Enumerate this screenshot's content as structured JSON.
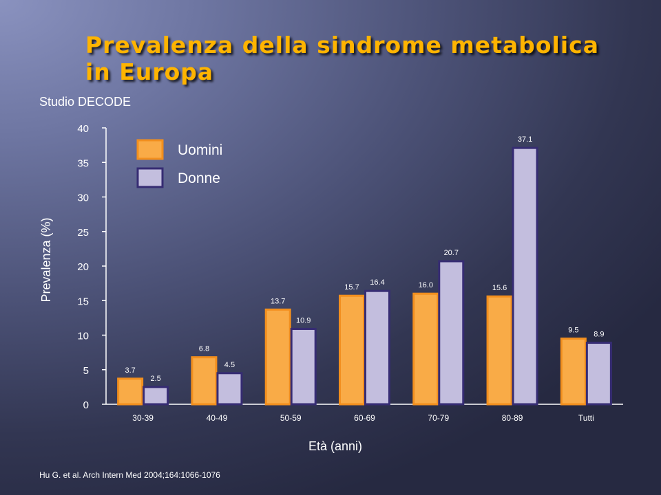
{
  "slide": {
    "title_line1": "Prevalenza della sindrome metabolica",
    "title_line2": "in Europa",
    "subtitle": "Studio DECODE",
    "citation": "Hu G. et al. Arch Intern Med 2004;164:1066-1076"
  },
  "chart_data": {
    "type": "bar",
    "categories": [
      "30-39",
      "40-49",
      "50-59",
      "60-69",
      "70-79",
      "80-89",
      "Tutti"
    ],
    "series": [
      {
        "name": "Uomini",
        "values": [
          3.7,
          6.8,
          13.7,
          15.7,
          16.0,
          15.6,
          9.5
        ],
        "labels": [
          "3.7",
          "6.8",
          "13.7",
          "15.7",
          "16.0",
          "15.6",
          "9.5"
        ],
        "color": "#f9ab47",
        "border": "#f28f1e"
      },
      {
        "name": "Donne",
        "values": [
          2.5,
          4.5,
          10.9,
          16.4,
          20.7,
          37.1,
          8.9
        ],
        "labels": [
          "2.5",
          "4.5",
          "10.9",
          "16.4",
          "20.7",
          "37.1",
          "8.9"
        ],
        "color": "#c3bede",
        "border": "#362c73"
      }
    ],
    "xlabel": "Età (anni)",
    "ylabel": "Prevalenza (%)",
    "ylim": [
      0,
      40
    ],
    "yticks": [
      0,
      5,
      10,
      15,
      20,
      25,
      30,
      35,
      40
    ],
    "grid": false,
    "legend_position": "top-left"
  }
}
